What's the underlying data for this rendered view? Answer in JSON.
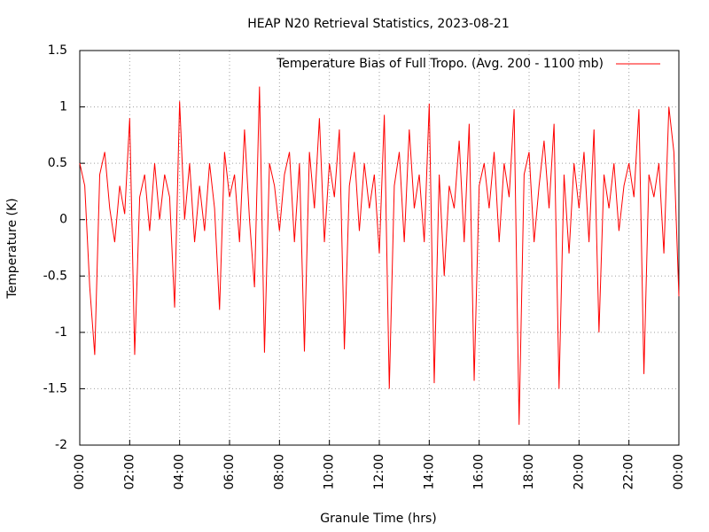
{
  "chart_data": {
    "type": "line",
    "title": "HEAP N20 Retrieval Statistics, 2023-08-21",
    "x_label": "Granule Time (hrs)",
    "y_label": "Temperature (K)",
    "x": [
      0,
      0.2,
      0.4,
      0.6,
      0.8,
      1,
      1.2,
      1.4,
      1.6,
      1.8,
      2,
      2.2,
      2.4,
      2.6,
      2.8,
      3,
      3.2,
      3.4,
      3.6,
      3.8,
      4,
      4.2,
      4.4,
      4.6,
      4.8,
      5,
      5.2,
      5.4,
      5.6,
      5.8,
      6,
      6.2,
      6.4,
      6.6,
      6.8,
      7,
      7.2,
      7.4,
      7.6,
      7.8,
      8,
      8.2,
      8.4,
      8.6,
      8.8,
      9,
      9.2,
      9.4,
      9.6,
      9.8,
      10,
      10.2,
      10.4,
      10.6,
      10.8,
      11,
      11.2,
      11.4,
      11.6,
      11.8,
      12,
      12.2,
      12.4,
      12.6,
      12.8,
      13,
      13.2,
      13.4,
      13.6,
      13.8,
      14,
      14.2,
      14.4,
      14.6,
      14.8,
      15,
      15.2,
      15.4,
      15.6,
      15.8,
      16,
      16.2,
      16.4,
      16.6,
      16.8,
      17,
      17.2,
      17.4,
      17.6,
      17.8,
      18,
      18.2,
      18.4,
      18.6,
      18.8,
      19,
      19.2,
      19.4,
      19.6,
      19.8,
      20,
      20.2,
      20.4,
      20.6,
      20.8,
      21,
      21.2,
      21.4,
      21.6,
      21.8,
      22,
      22.2,
      22.4,
      22.6,
      22.8,
      23,
      23.2,
      23.4,
      23.6,
      23.8,
      24
    ],
    "series": [
      {
        "name": "Temperature Bias of Full Tropo. (Avg. 200 - 1100 mb)",
        "color": "#ff0000",
        "values": [
          0.5,
          0.3,
          -0.6,
          -1.2,
          0.4,
          0.6,
          0.1,
          -0.2,
          0.3,
          0.05,
          0.9,
          -1.2,
          0.2,
          0.4,
          -0.1,
          0.5,
          0,
          0.4,
          0.2,
          -0.78,
          1.05,
          0,
          0.5,
          -0.2,
          0.3,
          -0.1,
          0.5,
          0.1,
          -0.8,
          0.6,
          0.2,
          0.4,
          -0.2,
          0.8,
          0,
          -0.6,
          1.18,
          -1.18,
          0.5,
          0.3,
          -0.1,
          0.4,
          0.6,
          -0.2,
          0.5,
          -1.17,
          0.6,
          0.1,
          0.9,
          -0.2,
          0.5,
          0.2,
          0.8,
          -1.15,
          0.3,
          0.6,
          -0.1,
          0.5,
          0.1,
          0.4,
          -0.3,
          0.93,
          -1.5,
          0.3,
          0.6,
          -0.2,
          0.8,
          0.1,
          0.4,
          -0.2,
          1.03,
          -1.45,
          0.4,
          -0.5,
          0.3,
          0.1,
          0.7,
          -0.2,
          0.85,
          -1.43,
          0.3,
          0.5,
          0.1,
          0.6,
          -0.2,
          0.5,
          0.2,
          0.98,
          -1.82,
          0.4,
          0.6,
          -0.2,
          0.3,
          0.7,
          0.1,
          0.85,
          -1.5,
          0.4,
          -0.3,
          0.5,
          0.1,
          0.6,
          -0.2,
          0.8,
          -1,
          0.4,
          0.1,
          0.5,
          -0.1,
          0.3,
          0.5,
          0.2,
          0.98,
          -1.37,
          0.4,
          0.2,
          0.5,
          -0.3,
          1,
          0.6,
          -0.68
        ]
      }
    ],
    "xlim": [
      0,
      24
    ],
    "xticks": [
      {
        "value": 0,
        "label": "00:00"
      },
      {
        "value": 2,
        "label": "02:00"
      },
      {
        "value": 4,
        "label": "04:00"
      },
      {
        "value": 6,
        "label": "06:00"
      },
      {
        "value": 8,
        "label": "08:00"
      },
      {
        "value": 10,
        "label": "10:00"
      },
      {
        "value": 12,
        "label": "12:00"
      },
      {
        "value": 14,
        "label": "14:00"
      },
      {
        "value": 16,
        "label": "16:00"
      },
      {
        "value": 18,
        "label": "18:00"
      },
      {
        "value": 20,
        "label": "20:00"
      },
      {
        "value": 22,
        "label": "22:00"
      },
      {
        "value": 24,
        "label": "00:00"
      }
    ],
    "ylim": [
      -2,
      1.5
    ],
    "yticks": [
      -2,
      -1.5,
      -1,
      -0.5,
      0,
      0.5,
      1,
      1.5
    ],
    "grid": true,
    "legend": "top right"
  }
}
